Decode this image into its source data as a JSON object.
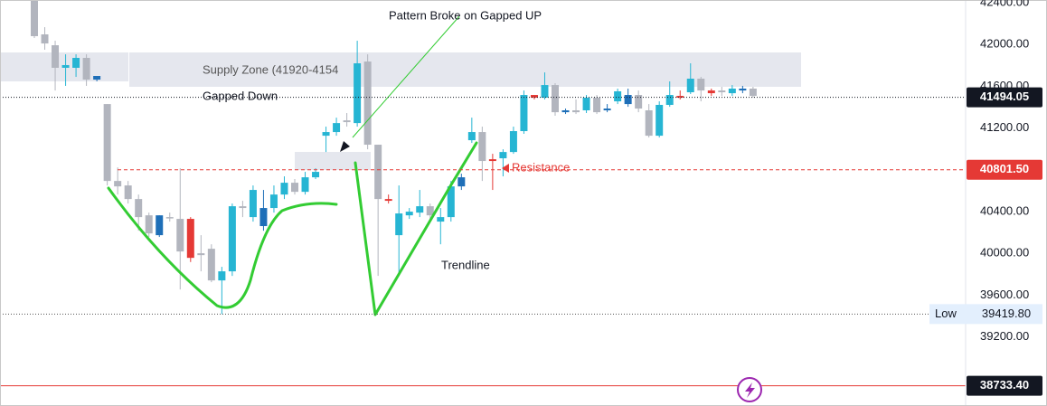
{
  "chart_data": {
    "type": "candlestick",
    "ylim": [
      38540,
      42426
    ],
    "yticks": [
      {
        "value": 42400,
        "label": "42400.00"
      },
      {
        "value": 42000,
        "label": "42000.00"
      },
      {
        "value": 41600,
        "label": "41600.00"
      },
      {
        "value": 41200,
        "label": "41200.00"
      },
      {
        "value": 40400,
        "label": "40400.00"
      },
      {
        "value": 40000,
        "label": "40000.00"
      },
      {
        "value": 39600,
        "label": "39600.00"
      },
      {
        "value": 39200,
        "label": "39200.00"
      }
    ],
    "open": [
      42420,
      42097,
      41993,
      41777,
      41777,
      41872,
      41699,
      41430,
      40694,
      40651,
      40521,
      40365,
      40365,
      40348,
      40331,
      40331,
      40002,
      40045,
      39742,
      39829,
      40452,
      40348,
      40435,
      40435,
      40564,
      40677,
      40590,
      40729,
      41127,
      41162,
      41274,
      41248,
      41837,
      41041,
      40521,
      40175,
      40365,
      40391,
      40452,
      40305,
      40348,
      40729,
      41084,
      41162,
      40902,
      40911,
      40971,
      41171,
      41517,
      41491,
      41612,
      41370,
      41370,
      41370,
      41491,
      41387,
      41456,
      41517,
      41517,
      41370,
      41127,
      41422,
      41508,
      41543,
      41673,
      41560,
      41560,
      41534,
      41578,
      41578
    ],
    "high": [
      42426,
      42166,
      42036,
      41906,
      41906,
      41906,
      41699,
      41430,
      40824,
      40694,
      40564,
      40391,
      40365,
      40391,
      40816,
      40348,
      40175,
      40088,
      39872,
      40478,
      40504,
      40651,
      40608,
      40651,
      40738,
      40712,
      40781,
      40816,
      41214,
      41300,
      41344,
      42036,
      41906,
      41041,
      40564,
      40651,
      40435,
      40608,
      40478,
      40435,
      40694,
      40764,
      41300,
      41214,
      40954,
      40997,
      41214,
      41560,
      41517,
      41733,
      41630,
      41387,
      41474,
      41517,
      41517,
      41430,
      41578,
      41578,
      41560,
      41430,
      41456,
      41647,
      41560,
      41820,
      41690,
      41578,
      41595,
      41612,
      41604,
      41595
    ],
    "low": [
      42062,
      41950,
      41560,
      41604,
      41690,
      41604,
      41647,
      40651,
      40564,
      40478,
      40218,
      40158,
      40158,
      40305,
      39655,
      39918,
      39829,
      39725,
      39419.8,
      39785,
      40348,
      40305,
      40218,
      40391,
      40521,
      40564,
      40564,
      40712,
      40971,
      41127,
      41214,
      41214,
      40997,
      39785,
      40478,
      39785,
      40331,
      40348,
      40305,
      40088,
      40305,
      40608,
      41058,
      40694,
      40608,
      40738,
      40954,
      41145,
      41474,
      41474,
      41318,
      41335,
      41335,
      41344,
      41335,
      41352,
      41430,
      41404,
      41352,
      41110,
      41110,
      41404,
      41474,
      41526,
      41456,
      41508,
      41508,
      41508,
      41534,
      41491
    ],
    "close": [
      42080,
      42010,
      41777,
      41803,
      41872,
      41664,
      41664,
      40694,
      40642,
      40521,
      40348,
      40192,
      40175,
      40340,
      40019,
      39958,
      39984,
      39742,
      39829,
      40452,
      40435,
      40608,
      40262,
      40564,
      40677,
      40590,
      40729,
      40781,
      41162,
      41248,
      41257,
      41820,
      41041,
      40521,
      40504,
      40383,
      40400,
      40452,
      40365,
      40348,
      40642,
      40642,
      41162,
      40885,
      40885,
      40971,
      41171,
      41517,
      41491,
      41612,
      41352,
      41352,
      41352,
      41491,
      41352,
      41370,
      41552,
      41430,
      41387,
      41127,
      41422,
      41517,
      41491,
      41673,
      41560,
      41534,
      41543,
      41578,
      41560,
      41508
    ],
    "candle_colors": [
      "#b2b5be",
      "#b2b5be",
      "#b2b5be",
      "#26b5d3",
      "#26b5d3",
      "#b2b5be",
      "#1e6fb8",
      "#b2b5be",
      "#b2b5be",
      "#b2b5be",
      "#b2b5be",
      "#b2b5be",
      "#1e6fb8",
      "#b2b5be",
      "#b2b5be",
      "#e53935",
      "#b2b5be",
      "#b2b5be",
      "#26b5d3",
      "#26b5d3",
      "#b2b5be",
      "#26b5d3",
      "#1e6fb8",
      "#26b5d3",
      "#26b5d3",
      "#b2b5be",
      "#26b5d3",
      "#26b5d3",
      "#26b5d3",
      "#26b5d3",
      "#b2b5be",
      "#26b5d3",
      "#b2b5be",
      "#b2b5be",
      "#e53935",
      "#26b5d3",
      "#26b5d3",
      "#26b5d3",
      "#b2b5be",
      "#26b5d3",
      "#26b5d3",
      "#1e6fb8",
      "#26b5d3",
      "#b2b5be",
      "#e53935",
      "#26b5d3",
      "#26b5d3",
      "#26b5d3",
      "#e53935",
      "#26b5d3",
      "#b2b5be",
      "#1e6fb8",
      "#b2b5be",
      "#26b5d3",
      "#b2b5be",
      "#1e6fb8",
      "#26b5d3",
      "#1e6fb8",
      "#b2b5be",
      "#b2b5be",
      "#26b5d3",
      "#26b5d3",
      "#e53935",
      "#26b5d3",
      "#b2b5be",
      "#e53935",
      "#b2b5be",
      "#26b5d3",
      "#1e6fb8",
      "#b2b5be"
    ],
    "current_price": {
      "value": 41494.05,
      "color": "#131722"
    },
    "resistance": {
      "value": 40801.5,
      "label": "40801.50",
      "color": "#e53935",
      "text": "Resistance"
    },
    "stop_line": {
      "value": 38733.4,
      "label": "38733.40",
      "color": "#e53935"
    },
    "low_marker": {
      "name": "Low",
      "value": 39419.8,
      "label": "39419.80"
    },
    "annotations": [
      "Pattern Broke on Gapped UP",
      "Supply Zone (41920-4154",
      "Gapped Down",
      "Trendline"
    ]
  }
}
